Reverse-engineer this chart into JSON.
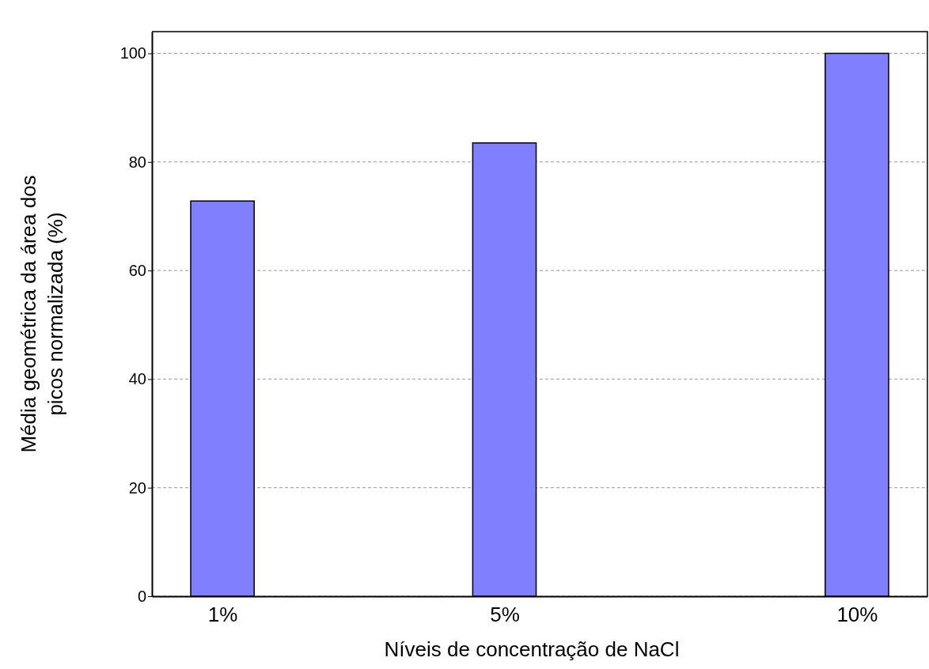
{
  "chart_data": {
    "type": "bar",
    "xlabel": "Níveis de concentração de NaCl",
    "ylabel": "Média geométrica da área dos picos normalizada (%)",
    "x": [
      1,
      5,
      10
    ],
    "values": [
      72.8,
      83.5,
      100
    ],
    "color": "#8080ff",
    "xlim": [
      0,
      11
    ],
    "xticks": [
      {
        "value": 1,
        "label": "1%"
      },
      {
        "value": 5,
        "label": "5%"
      },
      {
        "value": 10,
        "label": "10%"
      }
    ],
    "ylim": [
      0,
      104
    ],
    "yticks": [
      0,
      20,
      40,
      60,
      80,
      100
    ],
    "grid": "y"
  }
}
